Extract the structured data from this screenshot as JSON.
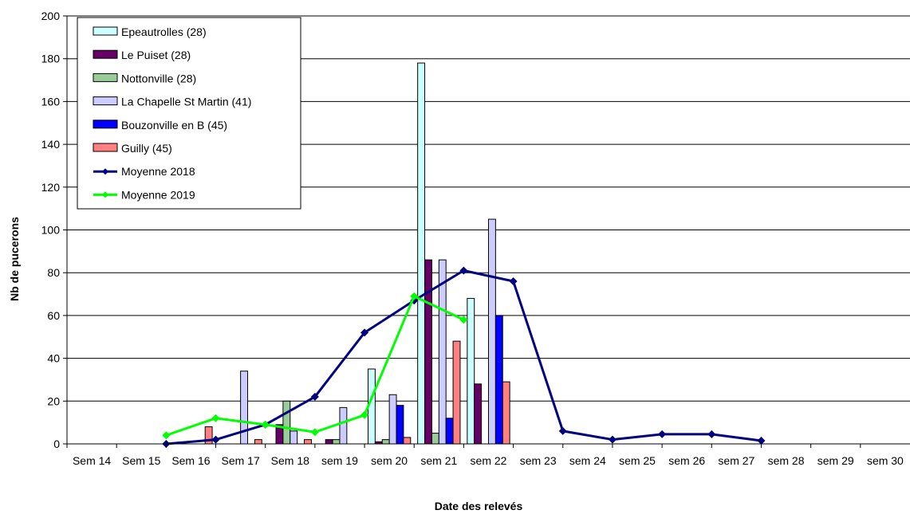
{
  "chart_data": {
    "type": "bar",
    "title": "",
    "xlabel": "Date des relevés",
    "ylabel": "Nb de pucerons",
    "ylim": [
      0,
      200
    ],
    "yticks": [
      0,
      20,
      40,
      60,
      80,
      100,
      120,
      140,
      160,
      180,
      200
    ],
    "grid": true,
    "legend_position": "top-left",
    "categories": [
      "Sem 14",
      "Sem 15",
      "Sem 16",
      "Sem 17",
      "Sem 18",
      "sem 19",
      "sem 20",
      "sem 21",
      "sem 22",
      "sem 23",
      "sem 24",
      "sem 25",
      "sem 26",
      "sem 27",
      "sem 28",
      "sem 29",
      "sem 30"
    ],
    "bar_series": [
      {
        "name": "Epeautrolles (28)",
        "color": "#ccffff",
        "values": [
          null,
          null,
          null,
          null,
          null,
          0,
          35,
          178,
          68,
          null,
          null,
          null,
          null,
          null,
          null,
          null,
          null
        ]
      },
      {
        "name": "Le Puiset (28)",
        "color": "#660066",
        "values": [
          null,
          null,
          null,
          null,
          9,
          2,
          1,
          86,
          28,
          null,
          null,
          null,
          null,
          null,
          null,
          null,
          null
        ]
      },
      {
        "name": "Nottonville (28)",
        "color": "#99cc99",
        "values": [
          null,
          null,
          null,
          null,
          20,
          2,
          2,
          5,
          null,
          null,
          null,
          null,
          null,
          null,
          null,
          null,
          null
        ]
      },
      {
        "name": "La Chapelle St Martin (41)",
        "color": "#ccccff",
        "values": [
          null,
          null,
          null,
          34,
          6,
          17,
          23,
          86,
          105,
          null,
          null,
          null,
          null,
          null,
          null,
          null,
          null
        ]
      },
      {
        "name": "Bouzonville en B (45)",
        "color": "#0000ff",
        "values": [
          null,
          null,
          null,
          null,
          null,
          null,
          18,
          12,
          60,
          null,
          null,
          null,
          null,
          null,
          null,
          null,
          null
        ]
      },
      {
        "name": "Guilly (45)",
        "color": "#ff8080",
        "values": [
          null,
          null,
          8,
          2,
          2,
          null,
          3,
          48,
          29,
          null,
          null,
          null,
          null,
          null,
          null,
          null,
          null
        ]
      }
    ],
    "line_series": [
      {
        "name": "Moyenne 2018",
        "color": "#000080",
        "marker": "diamond",
        "values": [
          null,
          null,
          0,
          2,
          9,
          22,
          52,
          67,
          81,
          76,
          6,
          2,
          4.5,
          4.5,
          1.5,
          null,
          null
        ]
      },
      {
        "name": "Moyenne 2019",
        "color": "#00ff00",
        "marker": "diamond",
        "values": [
          null,
          null,
          4,
          12,
          9,
          5.5,
          13.5,
          69,
          58,
          null,
          null,
          null,
          null,
          null,
          null,
          null,
          null
        ]
      }
    ]
  }
}
